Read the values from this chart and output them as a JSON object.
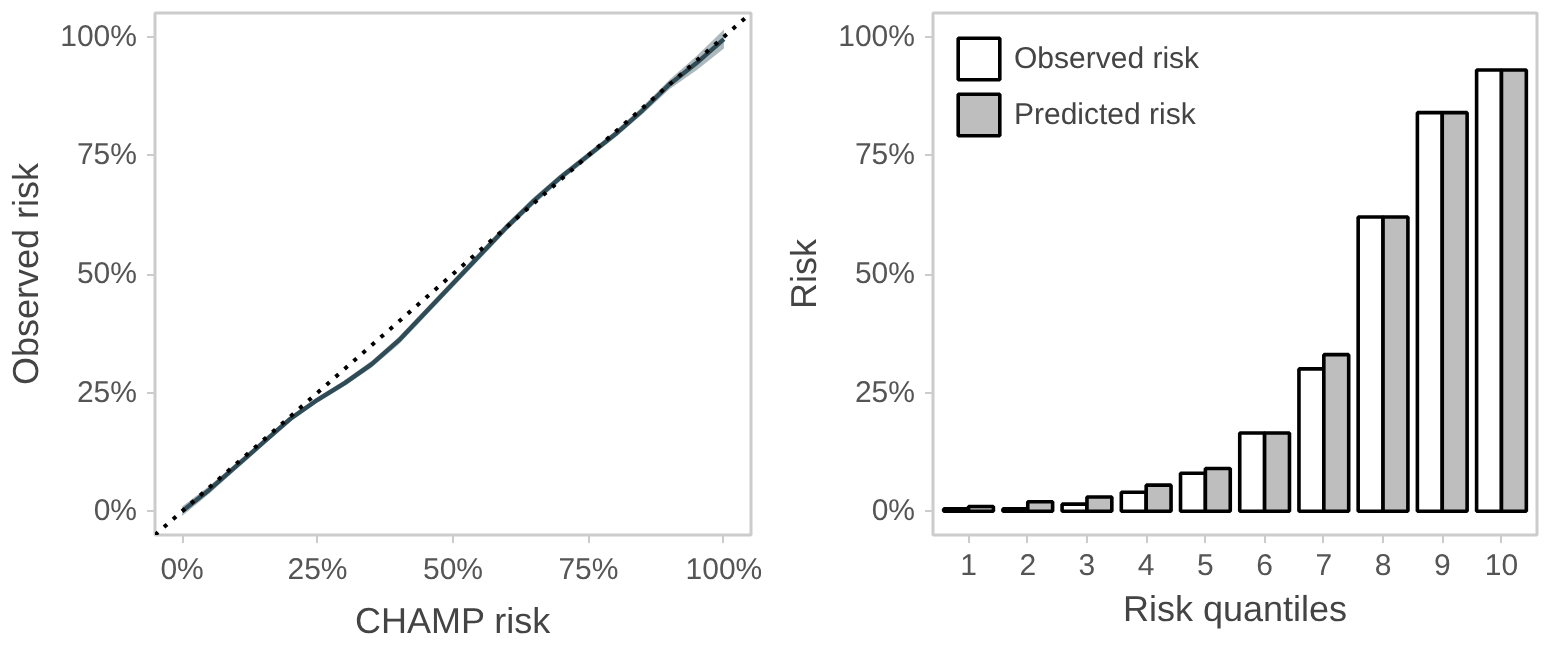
{
  "chart_data": [
    {
      "type": "line",
      "xlabel": "CHAMP risk",
      "ylabel": "Observed risk",
      "xlim": [
        -0.05,
        1.05
      ],
      "ylim": [
        -0.05,
        1.05
      ],
      "xticks": [
        {
          "value": 0,
          "label": "0%"
        },
        {
          "value": 0.25,
          "label": "25%"
        },
        {
          "value": 0.5,
          "label": "50%"
        },
        {
          "value": 0.75,
          "label": "75%"
        },
        {
          "value": 1,
          "label": "100%"
        }
      ],
      "yticks": [
        {
          "value": 0,
          "label": "0%"
        },
        {
          "value": 0.25,
          "label": "25%"
        },
        {
          "value": 0.5,
          "label": "50%"
        },
        {
          "value": 0.75,
          "label": "75%"
        },
        {
          "value": 1,
          "label": "100%"
        }
      ],
      "grid": false,
      "legend": false,
      "series": [
        {
          "color": "#2f4b55",
          "line_style": "solid",
          "x": [
            0,
            0.05,
            0.1,
            0.15,
            0.2,
            0.25,
            0.3,
            0.35,
            0.4,
            0.45,
            0.5,
            0.55,
            0.6,
            0.65,
            0.7,
            0.75,
            0.8,
            0.85,
            0.9,
            0.95,
            1.0
          ],
          "values": [
            0,
            0.045,
            0.095,
            0.145,
            0.195,
            0.235,
            0.27,
            0.31,
            0.36,
            0.42,
            0.48,
            0.54,
            0.6,
            0.655,
            0.705,
            0.75,
            0.795,
            0.845,
            0.9,
            0.945,
            0.995
          ],
          "lower": [
            -0.01,
            0.037,
            0.088,
            0.139,
            0.189,
            0.229,
            0.264,
            0.303,
            0.352,
            0.412,
            0.472,
            0.532,
            0.592,
            0.647,
            0.698,
            0.743,
            0.788,
            0.837,
            0.89,
            0.93,
            0.975
          ],
          "upper": [
            0.01,
            0.053,
            0.102,
            0.151,
            0.201,
            0.241,
            0.276,
            0.317,
            0.368,
            0.428,
            0.488,
            0.548,
            0.608,
            0.663,
            0.712,
            0.757,
            0.802,
            0.853,
            0.91,
            0.96,
            1.015
          ]
        },
        {
          "color": "#000000",
          "line_style": "dotted",
          "x": [
            -0.05,
            1.05
          ],
          "values": [
            -0.05,
            1.05
          ]
        }
      ]
    },
    {
      "type": "bar",
      "xlabel": "Risk quantiles",
      "ylabel": "Risk",
      "categories": [
        "1",
        "2",
        "3",
        "4",
        "5",
        "6",
        "7",
        "8",
        "9",
        "10"
      ],
      "ylim": [
        -0.05,
        1.05
      ],
      "yticks": [
        {
          "value": 0,
          "label": "0%"
        },
        {
          "value": 0.25,
          "label": "25%"
        },
        {
          "value": 0.5,
          "label": "50%"
        },
        {
          "value": 0.75,
          "label": "75%"
        },
        {
          "value": 1,
          "label": "100%"
        }
      ],
      "grid": false,
      "legend": "top left",
      "series": [
        {
          "name": "Observed risk",
          "color": "#ffffff",
          "values": [
            0.005,
            0.005,
            0.015,
            0.04,
            0.08,
            0.165,
            0.3,
            0.62,
            0.84,
            0.93
          ]
        },
        {
          "name": "Predicted risk",
          "color": "#bebebe",
          "values": [
            0.01,
            0.02,
            0.03,
            0.055,
            0.09,
            0.165,
            0.33,
            0.62,
            0.84,
            0.93
          ]
        }
      ]
    }
  ]
}
